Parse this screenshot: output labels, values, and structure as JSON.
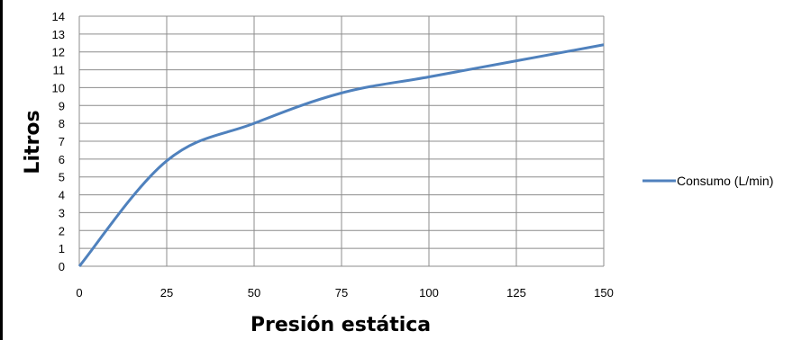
{
  "chart_data": {
    "type": "line",
    "title": "",
    "xlabel": "Presión estática",
    "ylabel": "Litros",
    "xlim": [
      0,
      150
    ],
    "ylim": [
      0,
      14
    ],
    "x_ticks": [
      "0",
      "25",
      "50",
      "75",
      "100",
      "125",
      "150"
    ],
    "y_ticks": [
      "0",
      "1",
      "2",
      "3",
      "4",
      "5",
      "6",
      "7",
      "8",
      "9",
      "10",
      "11",
      "12",
      "13",
      "14"
    ],
    "grid": true,
    "legend_position": "right",
    "series": [
      {
        "name": "Consumo (L/min)",
        "color": "#4F81BD",
        "x": [
          0,
          25,
          50,
          75,
          100,
          125,
          150
        ],
        "y": [
          0,
          5.9,
          8.0,
          9.7,
          10.6,
          11.5,
          12.4
        ]
      }
    ]
  }
}
